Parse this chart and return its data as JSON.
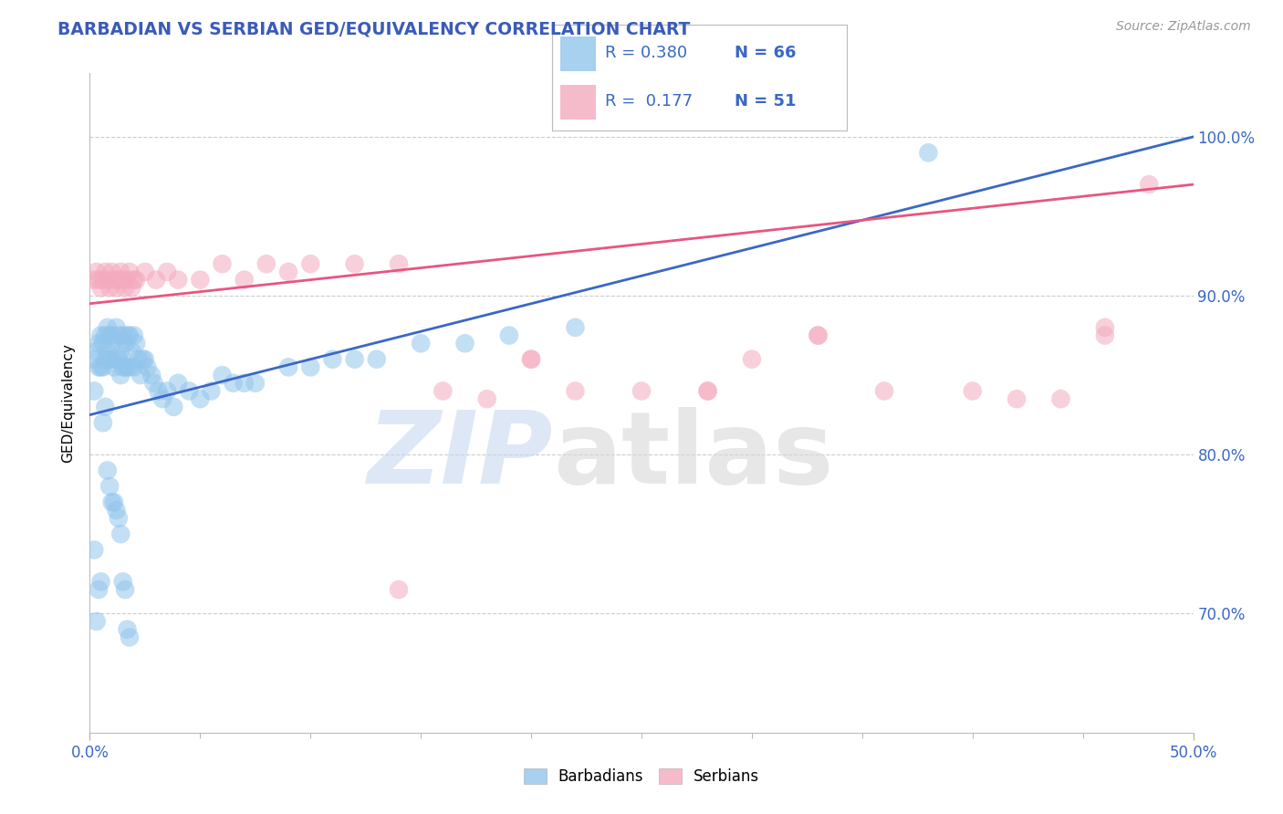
{
  "title": "BARBADIAN VS SERBIAN GED/EQUIVALENCY CORRELATION CHART",
  "source": "Source: ZipAtlas.com",
  "ylabel": "GED/Equivalency",
  "yticks": [
    "70.0%",
    "80.0%",
    "90.0%",
    "100.0%"
  ],
  "ytick_values": [
    0.7,
    0.8,
    0.9,
    1.0
  ],
  "xrange": [
    0.0,
    0.5
  ],
  "yrange": [
    0.625,
    1.04
  ],
  "blue_R": "0.380",
  "blue_N": "66",
  "pink_R": "0.177",
  "pink_N": "51",
  "legend_labels": [
    "Barbadians",
    "Serbians"
  ],
  "blue_color": "#92C5EC",
  "pink_color": "#F4AABE",
  "blue_line_color": "#3A68C4",
  "pink_line_color": "#E85580",
  "title_color": "#3A5BB8",
  "source_color": "#999999",
  "blue_line_x0": 0.0,
  "blue_line_y0": 0.825,
  "blue_line_x1": 0.5,
  "blue_line_y1": 1.0,
  "pink_line_x0": 0.0,
  "pink_line_y0": 0.895,
  "pink_line_x1": 0.5,
  "pink_line_y1": 0.97,
  "blue_scatter_x": [
    0.002,
    0.002,
    0.003,
    0.004,
    0.004,
    0.005,
    0.005,
    0.006,
    0.006,
    0.007,
    0.007,
    0.008,
    0.008,
    0.009,
    0.009,
    0.01,
    0.01,
    0.011,
    0.011,
    0.012,
    0.012,
    0.013,
    0.013,
    0.014,
    0.014,
    0.015,
    0.015,
    0.016,
    0.016,
    0.017,
    0.017,
    0.018,
    0.018,
    0.019,
    0.02,
    0.02,
    0.021,
    0.022,
    0.023,
    0.024,
    0.025,
    0.026,
    0.028,
    0.029,
    0.031,
    0.033,
    0.035,
    0.038,
    0.04,
    0.045,
    0.05,
    0.055,
    0.06,
    0.065,
    0.07,
    0.075,
    0.09,
    0.1,
    0.11,
    0.12,
    0.13,
    0.15,
    0.17,
    0.19,
    0.22,
    0.38
  ],
  "blue_scatter_y": [
    0.86,
    0.84,
    0.865,
    0.87,
    0.855,
    0.875,
    0.855,
    0.87,
    0.855,
    0.875,
    0.86,
    0.88,
    0.865,
    0.875,
    0.86,
    0.875,
    0.86,
    0.87,
    0.855,
    0.88,
    0.86,
    0.875,
    0.86,
    0.865,
    0.85,
    0.875,
    0.855,
    0.87,
    0.855,
    0.875,
    0.855,
    0.875,
    0.855,
    0.865,
    0.875,
    0.855,
    0.87,
    0.86,
    0.85,
    0.86,
    0.86,
    0.855,
    0.85,
    0.845,
    0.84,
    0.835,
    0.84,
    0.83,
    0.845,
    0.84,
    0.835,
    0.84,
    0.85,
    0.845,
    0.845,
    0.845,
    0.855,
    0.855,
    0.86,
    0.86,
    0.86,
    0.87,
    0.87,
    0.875,
    0.88,
    0.99
  ],
  "blue_scatter_y_low": [
    0.74,
    0.695,
    0.715,
    0.72,
    0.82,
    0.83,
    0.79,
    0.78,
    0.77,
    0.77,
    0.765,
    0.76,
    0.75,
    0.72,
    0.715,
    0.69,
    0.685
  ],
  "blue_scatter_x_low": [
    0.002,
    0.003,
    0.004,
    0.005,
    0.006,
    0.007,
    0.008,
    0.009,
    0.01,
    0.011,
    0.012,
    0.013,
    0.014,
    0.015,
    0.016,
    0.017,
    0.018
  ],
  "pink_scatter_x": [
    0.002,
    0.003,
    0.004,
    0.005,
    0.006,
    0.007,
    0.008,
    0.009,
    0.01,
    0.011,
    0.012,
    0.013,
    0.014,
    0.015,
    0.016,
    0.017,
    0.018,
    0.019,
    0.02,
    0.021,
    0.025,
    0.03,
    0.035,
    0.04,
    0.05,
    0.06,
    0.07,
    0.08,
    0.09,
    0.1,
    0.12,
    0.14,
    0.16,
    0.18,
    0.2,
    0.22,
    0.25,
    0.28,
    0.3,
    0.33,
    0.36,
    0.4,
    0.44,
    0.48,
    0.14,
    0.2,
    0.28,
    0.33,
    0.42,
    0.46,
    0.46
  ],
  "pink_scatter_y": [
    0.91,
    0.915,
    0.91,
    0.905,
    0.91,
    0.915,
    0.91,
    0.905,
    0.915,
    0.91,
    0.905,
    0.91,
    0.915,
    0.91,
    0.905,
    0.91,
    0.915,
    0.905,
    0.91,
    0.91,
    0.915,
    0.91,
    0.915,
    0.91,
    0.91,
    0.92,
    0.91,
    0.92,
    0.915,
    0.92,
    0.92,
    0.715,
    0.84,
    0.835,
    0.86,
    0.84,
    0.84,
    0.84,
    0.86,
    0.875,
    0.84,
    0.84,
    0.835,
    0.97,
    0.92,
    0.86,
    0.84,
    0.875,
    0.835,
    0.875,
    0.88
  ]
}
